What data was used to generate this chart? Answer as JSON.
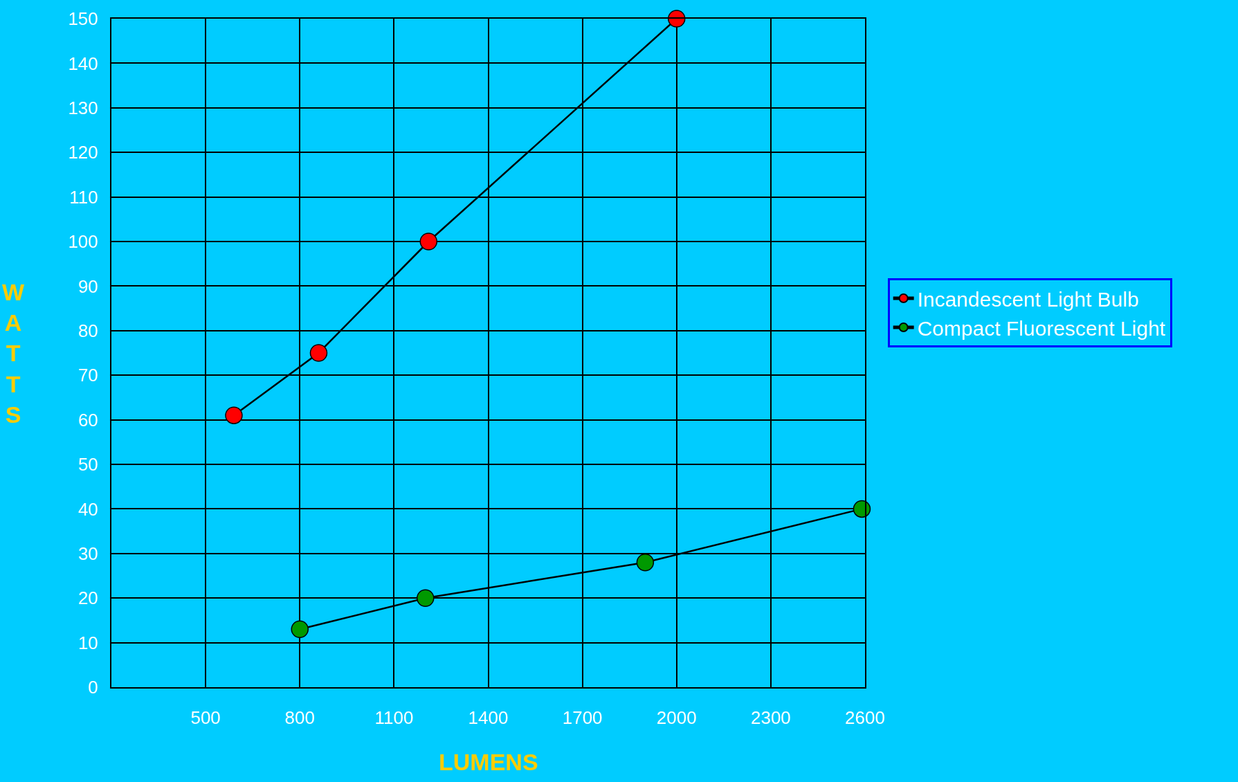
{
  "chart_data": {
    "type": "line",
    "xlabel": "LUMENS",
    "ylabel": "WATTS",
    "xlim": [
      200,
      2600
    ],
    "xticks": [
      500,
      800,
      1100,
      1400,
      1700,
      2000,
      2300,
      2600
    ],
    "ylim": [
      0,
      150
    ],
    "yticks": [
      0,
      10,
      20,
      30,
      40,
      50,
      60,
      70,
      80,
      90,
      100,
      110,
      120,
      130,
      140,
      150
    ],
    "grid": true,
    "legend": "right",
    "marker": "circle",
    "line_style": "solid",
    "series": [
      {
        "name": "Incandescent Light Bulb",
        "color": "#ff0000",
        "x": [
          590,
          860,
          1210,
          2000
        ],
        "values": [
          61,
          75,
          100,
          150
        ]
      },
      {
        "name": "Compact Fluorescent Light",
        "color": "#009900",
        "x": [
          800,
          1200,
          1900,
          2590
        ],
        "values": [
          13,
          20,
          28,
          40
        ]
      }
    ]
  }
}
